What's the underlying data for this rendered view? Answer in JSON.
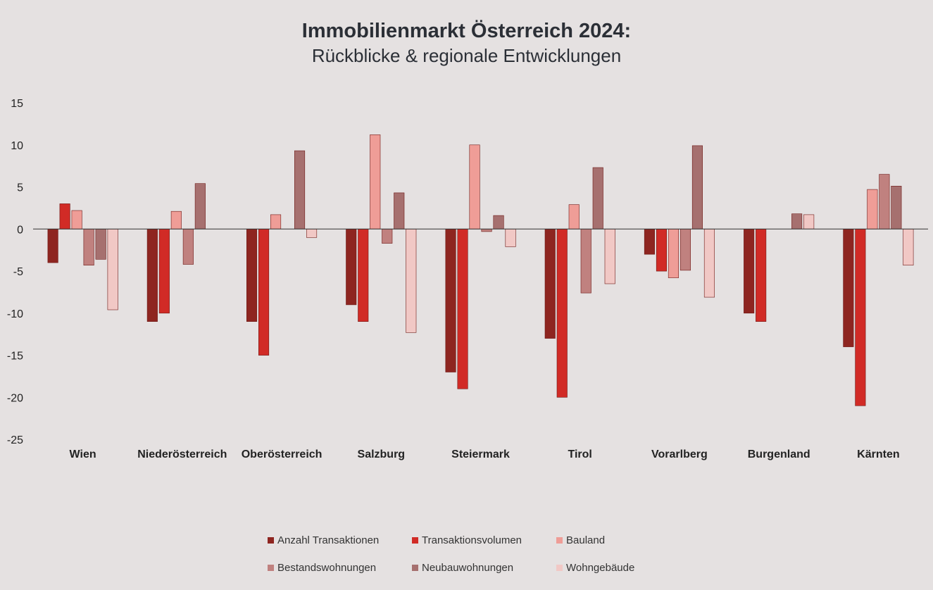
{
  "chart_data": {
    "type": "bar",
    "title": "Immobilienmarkt Österreich 2024:",
    "subtitle": "Rückblicke & regionale Entwicklungen",
    "categories": [
      "Wien",
      "Niederösterreich",
      "Oberösterreich",
      "Salzburg",
      "Steiermark",
      "Tirol",
      "Vorarlberg",
      "Burgenland",
      "Kärnten"
    ],
    "ylim": [
      -25,
      15
    ],
    "yticks": [
      "15",
      "10",
      "5",
      "0",
      "-5",
      "-10",
      "-15",
      "-20",
      "-25"
    ],
    "grid": false,
    "legend_position": "bottom",
    "series": [
      {
        "name": "Anzahl Transaktionen",
        "color": "#8e2520",
        "values": [
          -4,
          -11,
          -11,
          -9,
          -17,
          -13,
          -3,
          -10,
          -14
        ]
      },
      {
        "name": "Transaktionsvolumen",
        "color": "#d12b26",
        "values": [
          3,
          -10,
          -15,
          -11,
          -19,
          -20,
          -5,
          -11,
          -21
        ]
      },
      {
        "name": "Bauland",
        "color": "#ef9d97",
        "values": [
          2.2,
          2.1,
          1.7,
          11.2,
          10,
          2.9,
          -5.8,
          0,
          4.7
        ]
      },
      {
        "name": "Bestandswohnungen",
        "color": "#c0817f",
        "values": [
          -4.3,
          -4.2,
          0,
          -1.7,
          -0.3,
          -7.6,
          -4.9,
          0,
          6.5
        ]
      },
      {
        "name": "Neubauwohnungen",
        "color": "#a6706f",
        "values": [
          -3.6,
          5.4,
          9.3,
          4.3,
          1.6,
          7.3,
          9.9,
          1.8,
          5.1
        ]
      },
      {
        "name": "Wohngebäude",
        "color": "#f1c8c5",
        "values": [
          -9.6,
          0,
          -1,
          -12.3,
          -2.1,
          -6.5,
          -8.1,
          1.7,
          -4.3
        ]
      }
    ]
  }
}
